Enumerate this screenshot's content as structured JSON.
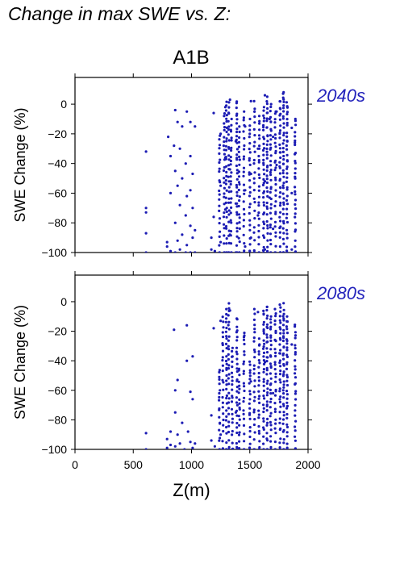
{
  "page_title": "Change in max SWE vs. Z:",
  "scenario": "A1B",
  "chart_data": [
    {
      "type": "scatter",
      "title": "2040s",
      "ylabel": "SWE Change (%)",
      "xlabel": "",
      "xlim": [
        0,
        2000
      ],
      "ylim": [
        -100,
        18
      ],
      "yticks": [
        0,
        -20,
        -40,
        -60,
        -80,
        -100
      ],
      "xticks": [
        0,
        500,
        1000,
        1500,
        2000
      ],
      "show_xtick_labels": false,
      "color": "#1c1cb4",
      "series": [
        {
          "points": [
            [
              610,
              -32
            ],
            [
              610,
              -70
            ],
            [
              610,
              -73
            ],
            [
              610,
              -87
            ],
            [
              610,
              -100
            ],
            [
              790,
              -93
            ],
            [
              790,
              -96
            ],
            [
              800,
              -22
            ],
            [
              820,
              -35
            ],
            [
              820,
              -60
            ],
            [
              820,
              -99
            ],
            [
              850,
              -28
            ],
            [
              860,
              -4
            ],
            [
              860,
              -45
            ],
            [
              860,
              -80
            ],
            [
              860,
              -100
            ],
            [
              880,
              -12
            ],
            [
              880,
              -55
            ],
            [
              880,
              -92
            ],
            [
              900,
              -30
            ],
            [
              900,
              -68
            ],
            [
              900,
              -98
            ],
            [
              920,
              -15
            ],
            [
              920,
              -50
            ],
            [
              920,
              -88
            ],
            [
              950,
              -40
            ],
            [
              950,
              -75
            ],
            [
              950,
              -100
            ],
            [
              960,
              -5
            ],
            [
              960,
              -62
            ],
            [
              960,
              -95
            ],
            [
              990,
              -12
            ],
            [
              990,
              -35
            ],
            [
              990,
              -58
            ],
            [
              990,
              -82
            ],
            [
              990,
              -100
            ],
            [
              1010,
              -47
            ],
            [
              1010,
              -70
            ],
            [
              1010,
              -90
            ],
            [
              1030,
              -15
            ],
            [
              1030,
              -85
            ],
            [
              1030,
              -100
            ],
            [
              1170,
              -90
            ],
            [
              1170,
              -98
            ],
            [
              1190,
              -6
            ],
            [
              1190,
              -76
            ],
            [
              1200,
              -99
            ],
            [
              1250,
              -20
            ],
            [
              1250,
              -55
            ],
            [
              1250,
              -93
            ],
            [
              1290,
              -2
            ],
            [
              1290,
              -36
            ],
            [
              1290,
              -71
            ],
            [
              1330,
              3
            ],
            [
              1330,
              -44
            ],
            [
              1330,
              -88
            ],
            [
              1380,
              -25
            ],
            [
              1380,
              -67
            ],
            [
              1380,
              -100
            ],
            [
              1460,
              -15
            ],
            [
              1460,
              -58
            ],
            [
              1460,
              -96
            ],
            [
              1510,
              2
            ],
            [
              1510,
              -47
            ],
            [
              1510,
              -90
            ],
            [
              1570,
              -30
            ],
            [
              1570,
              -75
            ],
            [
              1630,
              6
            ],
            [
              1630,
              -52
            ],
            [
              1630,
              -98
            ],
            [
              1670,
              -10
            ],
            [
              1670,
              -63
            ],
            [
              1700,
              -22
            ],
            [
              1700,
              -84
            ],
            [
              1730,
              -5
            ],
            [
              1730,
              -41
            ],
            [
              1790,
              8
            ],
            [
              1790,
              -35
            ],
            [
              1790,
              -79
            ],
            [
              1860,
              -16
            ],
            [
              1860,
              -60
            ],
            [
              1860,
              -98
            ]
          ]
        }
      ],
      "bands": [
        {
          "x": 1240,
          "ymin": -100,
          "ymax": -20,
          "n": 22
        },
        {
          "x": 1280,
          "ymin": -100,
          "ymax": -5,
          "n": 26
        },
        {
          "x": 1300,
          "ymin": -100,
          "ymax": 3,
          "n": 30
        },
        {
          "x": 1320,
          "ymin": -100,
          "ymax": 2,
          "n": 28
        },
        {
          "x": 1340,
          "ymin": -100,
          "ymax": -10,
          "n": 26
        },
        {
          "x": 1390,
          "ymin": -100,
          "ymax": 3,
          "n": 34
        },
        {
          "x": 1410,
          "ymin": -100,
          "ymax": -15,
          "n": 24
        },
        {
          "x": 1450,
          "ymin": -100,
          "ymax": -5,
          "n": 24
        },
        {
          "x": 1500,
          "ymin": -100,
          "ymax": -10,
          "n": 26
        },
        {
          "x": 1540,
          "ymin": -100,
          "ymax": 2,
          "n": 24
        },
        {
          "x": 1580,
          "ymin": -100,
          "ymax": -8,
          "n": 26
        },
        {
          "x": 1620,
          "ymin": -100,
          "ymax": -2,
          "n": 36
        },
        {
          "x": 1650,
          "ymin": -100,
          "ymax": 5,
          "n": 38
        },
        {
          "x": 1680,
          "ymin": -100,
          "ymax": 0,
          "n": 34
        },
        {
          "x": 1720,
          "ymin": -100,
          "ymax": -5,
          "n": 30
        },
        {
          "x": 1760,
          "ymin": -100,
          "ymax": 3,
          "n": 38
        },
        {
          "x": 1790,
          "ymin": -100,
          "ymax": 8,
          "n": 40
        },
        {
          "x": 1820,
          "ymin": -100,
          "ymax": 2,
          "n": 36
        },
        {
          "x": 1890,
          "ymin": -100,
          "ymax": -10,
          "n": 30
        }
      ]
    },
    {
      "type": "scatter",
      "title": "2080s",
      "ylabel": "SWE Change (%)",
      "xlabel": "Z(m)",
      "xlim": [
        0,
        2000
      ],
      "ylim": [
        -100,
        18
      ],
      "yticks": [
        0,
        -20,
        -40,
        -60,
        -80,
        -100
      ],
      "xticks": [
        0,
        500,
        1000,
        1500,
        2000
      ],
      "show_xtick_labels": true,
      "color": "#1c1cb4",
      "series": [
        {
          "points": [
            [
              610,
              -89
            ],
            [
              610,
              -100
            ],
            [
              790,
              -93
            ],
            [
              790,
              -99
            ],
            [
              820,
              -88
            ],
            [
              820,
              -97
            ],
            [
              850,
              -19
            ],
            [
              860,
              -60
            ],
            [
              860,
              -75
            ],
            [
              860,
              -98
            ],
            [
              880,
              -53
            ],
            [
              880,
              -90
            ],
            [
              900,
              -96
            ],
            [
              920,
              -82
            ],
            [
              940,
              -100
            ],
            [
              960,
              -16
            ],
            [
              960,
              -40
            ],
            [
              970,
              -88
            ],
            [
              990,
              -61
            ],
            [
              990,
              -95
            ],
            [
              1010,
              -37
            ],
            [
              1010,
              -66
            ],
            [
              1010,
              -99
            ],
            [
              1030,
              -96
            ],
            [
              1170,
              -77
            ],
            [
              1170,
              -94
            ],
            [
              1190,
              -18
            ],
            [
              1200,
              -98
            ],
            [
              1250,
              -13
            ],
            [
              1250,
              -90
            ],
            [
              1300,
              -45
            ],
            [
              1330,
              -6
            ],
            [
              1380,
              -75
            ],
            [
              1450,
              -24
            ],
            [
              1510,
              -54
            ],
            [
              1570,
              -7
            ],
            [
              1630,
              -41
            ],
            [
              1700,
              -62
            ],
            [
              1790,
              -1
            ],
            [
              1860,
              -29
            ]
          ]
        }
      ],
      "bands": [
        {
          "x": 1240,
          "ymin": -100,
          "ymax": -45,
          "n": 18
        },
        {
          "x": 1270,
          "ymin": -100,
          "ymax": -10,
          "n": 24
        },
        {
          "x": 1300,
          "ymin": -100,
          "ymax": -5,
          "n": 28
        },
        {
          "x": 1320,
          "ymin": -100,
          "ymax": 0,
          "n": 28
        },
        {
          "x": 1350,
          "ymin": -100,
          "ymax": -30,
          "n": 22
        },
        {
          "x": 1390,
          "ymin": -100,
          "ymax": -10,
          "n": 28
        },
        {
          "x": 1410,
          "ymin": -100,
          "ymax": -45,
          "n": 18
        },
        {
          "x": 1450,
          "ymin": -100,
          "ymax": -20,
          "n": 22
        },
        {
          "x": 1500,
          "ymin": -100,
          "ymax": -40,
          "n": 20
        },
        {
          "x": 1540,
          "ymin": -100,
          "ymax": -5,
          "n": 26
        },
        {
          "x": 1580,
          "ymin": -100,
          "ymax": -25,
          "n": 24
        },
        {
          "x": 1620,
          "ymin": -100,
          "ymax": -5,
          "n": 34
        },
        {
          "x": 1650,
          "ymin": -100,
          "ymax": -2,
          "n": 36
        },
        {
          "x": 1680,
          "ymin": -100,
          "ymax": -10,
          "n": 32
        },
        {
          "x": 1720,
          "ymin": -100,
          "ymax": -5,
          "n": 30
        },
        {
          "x": 1760,
          "ymin": -100,
          "ymax": -2,
          "n": 36
        },
        {
          "x": 1790,
          "ymin": -100,
          "ymax": -5,
          "n": 38
        },
        {
          "x": 1820,
          "ymin": -100,
          "ymax": -10,
          "n": 34
        },
        {
          "x": 1890,
          "ymin": -100,
          "ymax": -15,
          "n": 28
        }
      ]
    }
  ]
}
